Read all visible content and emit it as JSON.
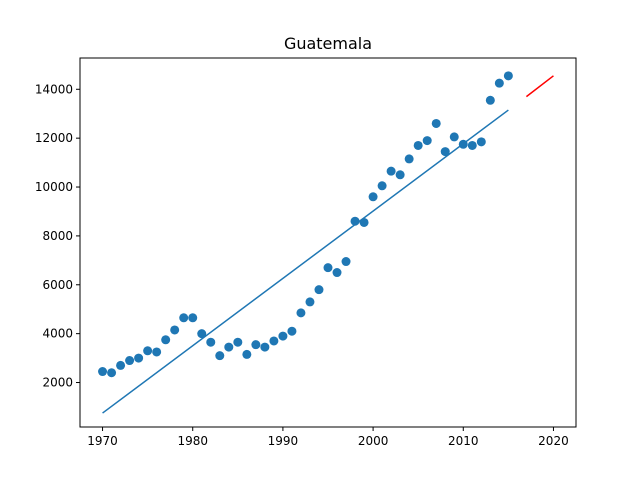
{
  "chart_data": {
    "type": "scatter",
    "title": "Guatemala",
    "xlabel": "",
    "ylabel": "",
    "xlim": [
      1967.5,
      2022.5
    ],
    "ylim": [
      180,
      15280
    ],
    "xticks": [
      1970,
      1980,
      1990,
      2000,
      2010,
      2020
    ],
    "xtick_labels": [
      "1970",
      "1980",
      "1990",
      "2000",
      "2010",
      "2020"
    ],
    "yticks": [
      2000,
      4000,
      6000,
      8000,
      10000,
      12000,
      14000
    ],
    "ytick_labels": [
      "2000",
      "4000",
      "6000",
      "8000",
      "10000",
      "12000",
      "14000"
    ],
    "grid": false,
    "series": [
      {
        "kind": "scatter",
        "color": "#1f77b4",
        "x": [
          1970,
          1971,
          1972,
          1973,
          1974,
          1975,
          1976,
          1977,
          1978,
          1979,
          1980,
          1981,
          1982,
          1983,
          1984,
          1985,
          1986,
          1987,
          1988,
          1989,
          1990,
          1991,
          1992,
          1993,
          1994,
          1995,
          1996,
          1997,
          1998,
          1999,
          2000,
          2001,
          2002,
          2003,
          2004,
          2005,
          2006,
          2007,
          2008,
          2009,
          2010,
          2011,
          2012,
          2013,
          2014,
          2015
        ],
        "y": [
          2450,
          2400,
          2700,
          2900,
          3000,
          3300,
          3250,
          3750,
          4150,
          4650,
          4650,
          4000,
          3650,
          3100,
          3450,
          3650,
          3150,
          3550,
          3450,
          3700,
          3900,
          4100,
          4850,
          5300,
          5800,
          6700,
          6500,
          6950,
          8600,
          8550,
          9600,
          10050,
          10650,
          10500,
          11150,
          11700,
          11900,
          12600,
          11450,
          12050,
          11750,
          11700,
          11850,
          13550,
          14250,
          14550
        ]
      },
      {
        "kind": "line",
        "color": "#1f77b4",
        "x": [
          1970,
          2015
        ],
        "y": [
          750,
          13150
        ]
      },
      {
        "kind": "line",
        "color": "#ff0000",
        "x": [
          2017,
          2020
        ],
        "y": [
          13700,
          14550
        ]
      }
    ]
  }
}
